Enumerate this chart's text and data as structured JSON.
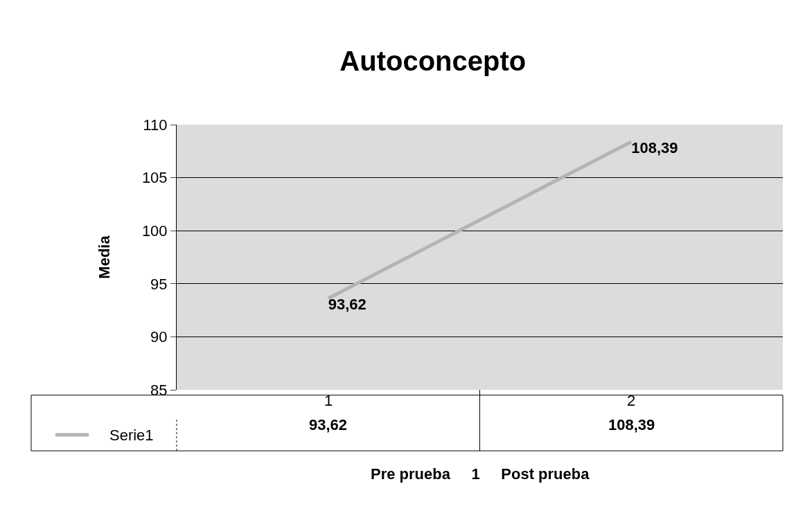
{
  "chart_data": {
    "type": "line",
    "title": "Autoconcepto",
    "ylabel": "Media",
    "xlabel": "Pre prueba     1     Post prueba",
    "categories": [
      "1",
      "2"
    ],
    "series": [
      {
        "name": "Serie1",
        "color": "#b4b4b4",
        "values": [
          93.62,
          108.39
        ],
        "value_labels": [
          "93,62",
          "108,39"
        ]
      }
    ],
    "ylim": [
      85,
      110
    ],
    "yticks": [
      85,
      90,
      95,
      100,
      105,
      110
    ],
    "grid": "y",
    "legend": "left",
    "marker": "none",
    "line_style": "solid"
  }
}
